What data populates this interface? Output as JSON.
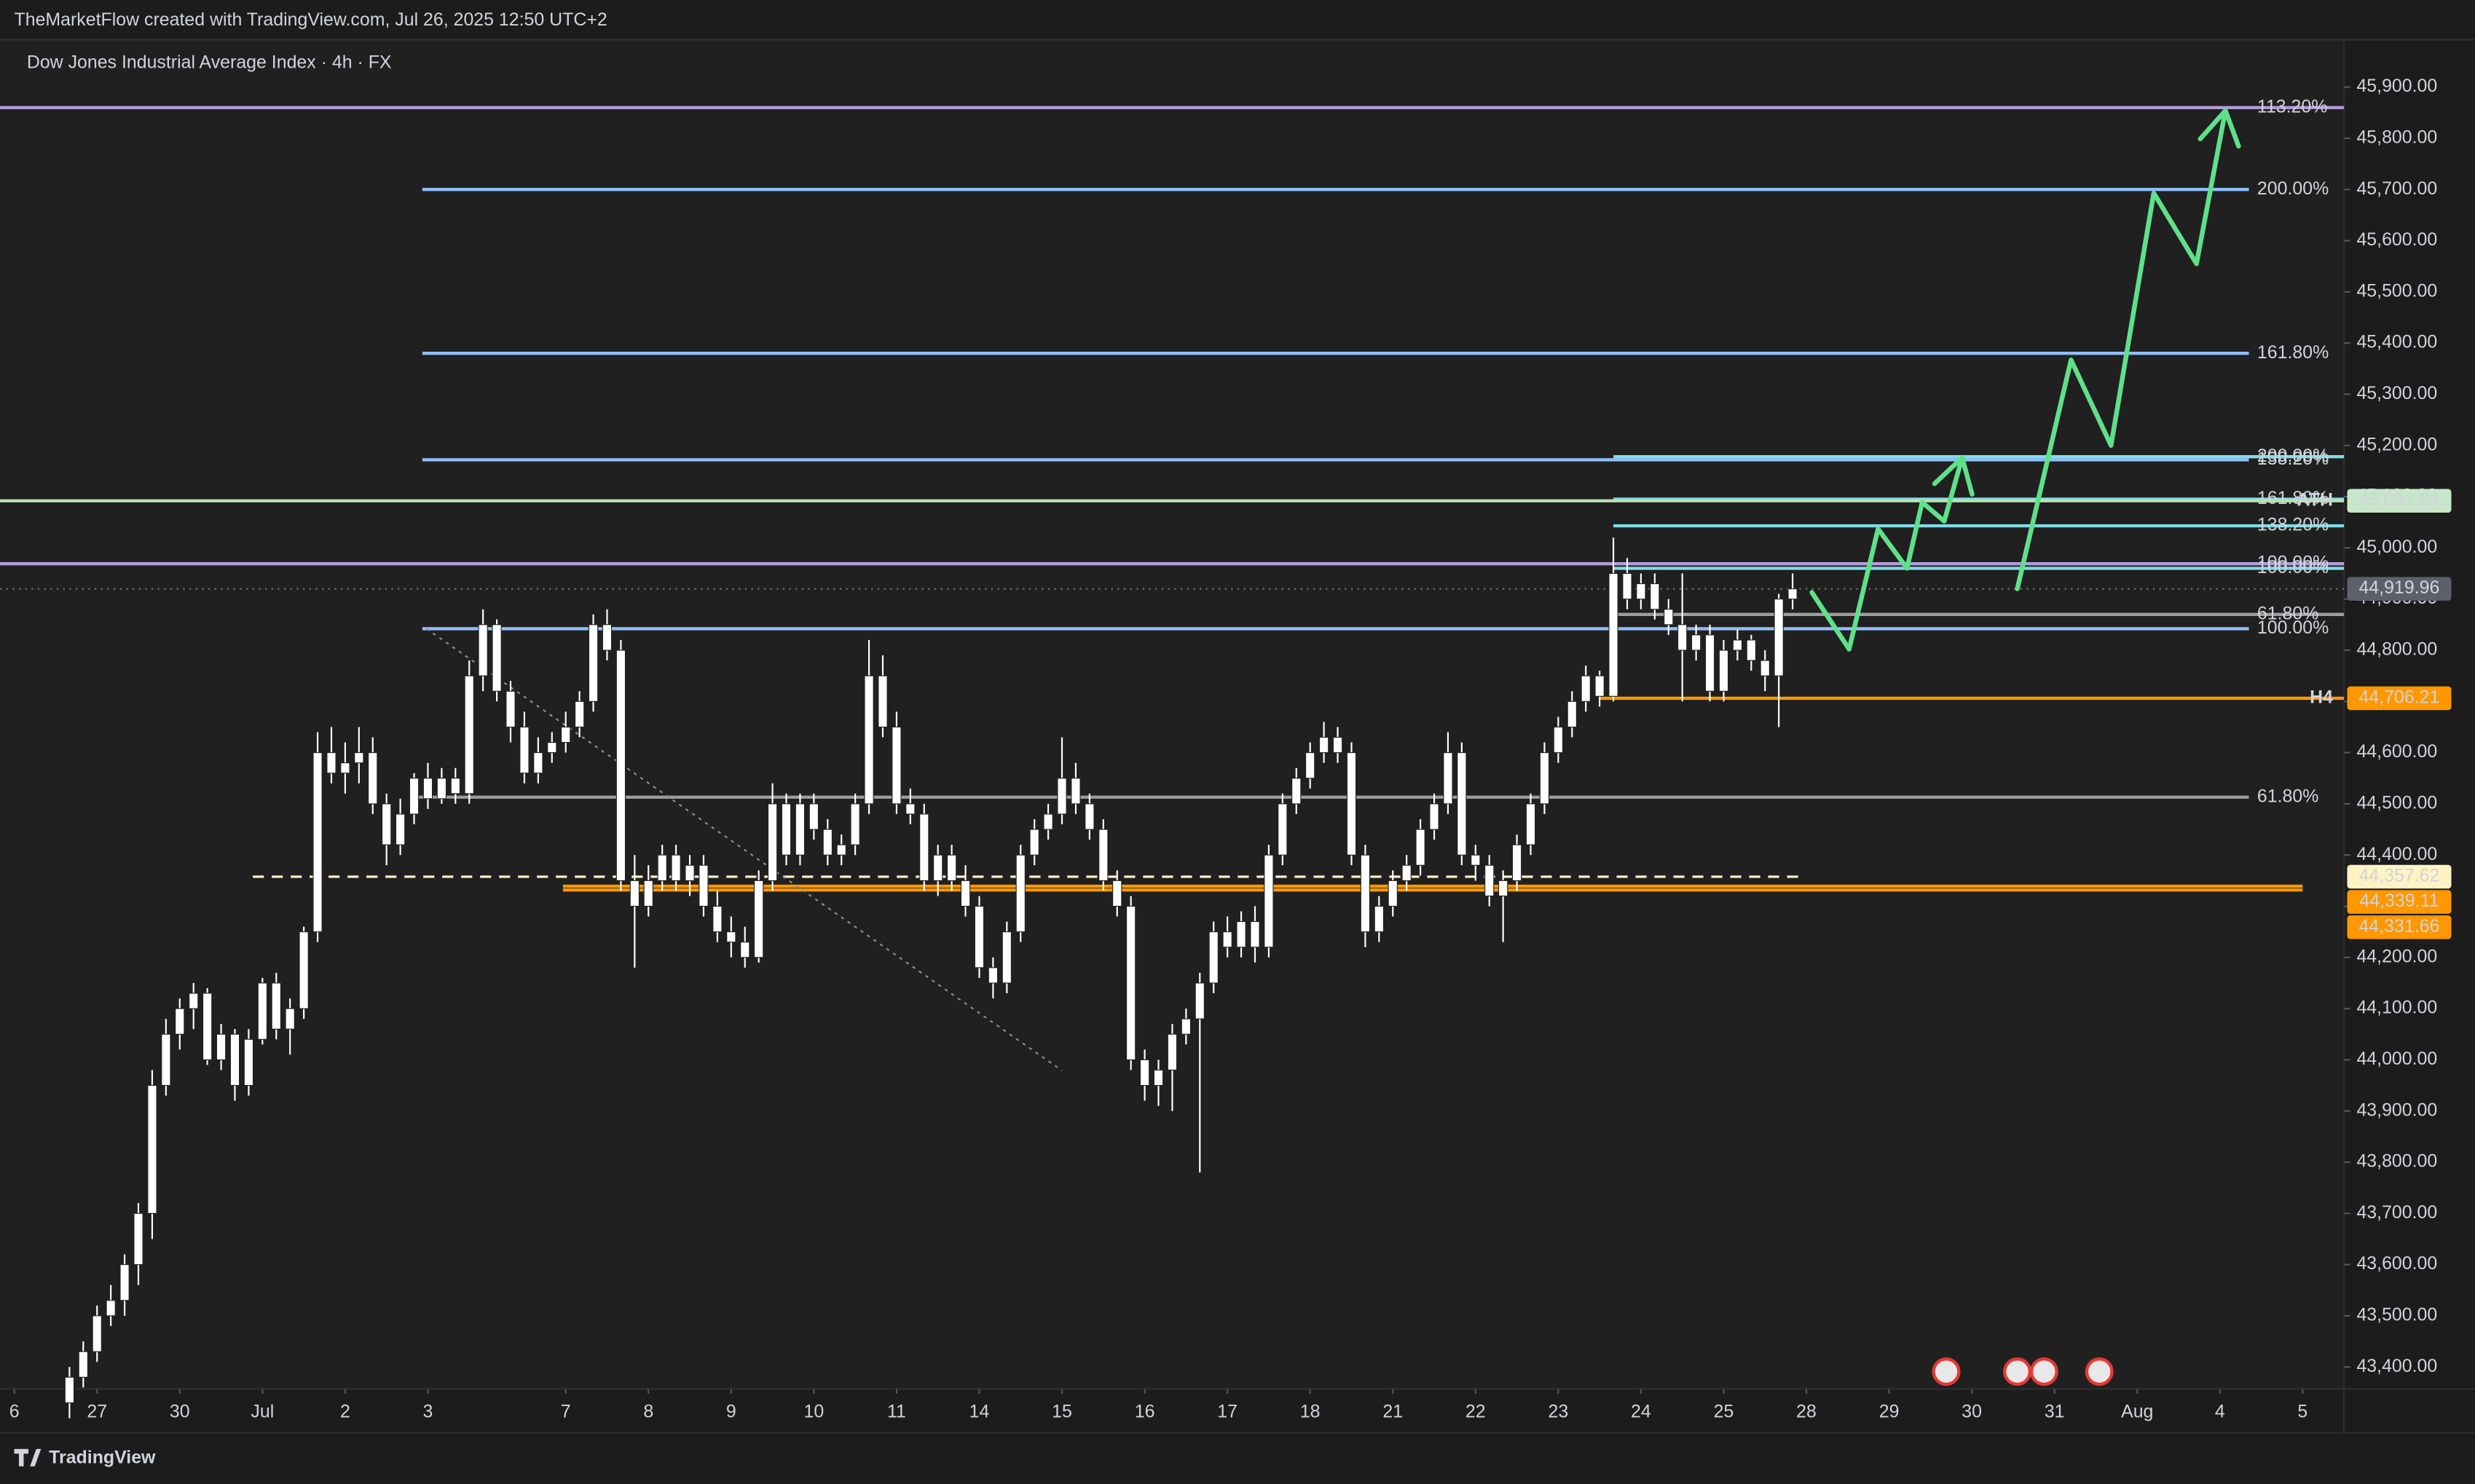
{
  "header": "TheMarketFlow created with TradingView.com, Jul 26, 2025 12:50 UTC+2",
  "footer": "TradingView",
  "chart_data": {
    "type": "candlestick",
    "title": "Dow Jones Industrial Average Index · 4h · FX",
    "candle_color": "#ffffff",
    "grid": false,
    "candles": [
      [
        43330,
        43400,
        43300,
        43380
      ],
      [
        43380,
        43450,
        43360,
        43430
      ],
      [
        43430,
        43520,
        43410,
        43500
      ],
      [
        43500,
        43560,
        43480,
        43530
      ],
      [
        43530,
        43620,
        43500,
        43600
      ],
      [
        43600,
        43720,
        43560,
        43700
      ],
      [
        43700,
        43980,
        43650,
        43950
      ],
      [
        43950,
        44080,
        43930,
        44050
      ],
      [
        44050,
        44120,
        44020,
        44100
      ],
      [
        44100,
        44150,
        44060,
        44130
      ],
      [
        44130,
        44140,
        43990,
        44000
      ],
      [
        44000,
        44070,
        43980,
        44050
      ],
      [
        44050,
        44060,
        43920,
        43950
      ],
      [
        43950,
        44060,
        43930,
        44040
      ],
      [
        44040,
        44160,
        44030,
        44150
      ],
      [
        44150,
        44170,
        44040,
        44060
      ],
      [
        44060,
        44120,
        44010,
        44100
      ],
      [
        44100,
        44260,
        44080,
        44250
      ],
      [
        44250,
        44640,
        44230,
        44600
      ],
      [
        44600,
        44650,
        44540,
        44560
      ],
      [
        44560,
        44620,
        44520,
        44580
      ],
      [
        44580,
        44650,
        44540,
        44600
      ],
      [
        44600,
        44630,
        44480,
        44500
      ],
      [
        44500,
        44520,
        44380,
        44420
      ],
      [
        44420,
        44510,
        44400,
        44480
      ],
      [
        44480,
        44560,
        44460,
        44550
      ],
      [
        44550,
        44580,
        44490,
        44510
      ],
      [
        44510,
        44570,
        44500,
        44550
      ],
      [
        44550,
        44570,
        44500,
        44520
      ],
      [
        44520,
        44780,
        44500,
        44750
      ],
      [
        44750,
        44880,
        44720,
        44850
      ],
      [
        44850,
        44860,
        44700,
        44720
      ],
      [
        44720,
        44740,
        44620,
        44650
      ],
      [
        44650,
        44680,
        44540,
        44560
      ],
      [
        44560,
        44630,
        44540,
        44600
      ],
      [
        44600,
        44640,
        44580,
        44620
      ],
      [
        44620,
        44680,
        44600,
        44650
      ],
      [
        44650,
        44720,
        44630,
        44700
      ],
      [
        44700,
        44870,
        44680,
        44850
      ],
      [
        44850,
        44880,
        44780,
        44800
      ],
      [
        44800,
        44820,
        44330,
        44350
      ],
      [
        44350,
        44400,
        44180,
        44300
      ],
      [
        44300,
        44380,
        44280,
        44350
      ],
      [
        44350,
        44420,
        44330,
        44400
      ],
      [
        44400,
        44420,
        44330,
        44350
      ],
      [
        44350,
        44400,
        44320,
        44380
      ],
      [
        44380,
        44400,
        44280,
        44300
      ],
      [
        44300,
        44330,
        44230,
        44250
      ],
      [
        44250,
        44280,
        44200,
        44230
      ],
      [
        44230,
        44260,
        44180,
        44200
      ],
      [
        44200,
        44370,
        44190,
        44350
      ],
      [
        44350,
        44540,
        44330,
        44500
      ],
      [
        44500,
        44520,
        44380,
        44400
      ],
      [
        44400,
        44520,
        44380,
        44500
      ],
      [
        44500,
        44520,
        44430,
        44450
      ],
      [
        44450,
        44470,
        44380,
        44400
      ],
      [
        44400,
        44440,
        44380,
        44420
      ],
      [
        44420,
        44520,
        44400,
        44500
      ],
      [
        44500,
        44820,
        44480,
        44750
      ],
      [
        44750,
        44790,
        44630,
        44650
      ],
      [
        44650,
        44680,
        44480,
        44500
      ],
      [
        44500,
        44530,
        44460,
        44480
      ],
      [
        44480,
        44500,
        44330,
        44350
      ],
      [
        44350,
        44420,
        44320,
        44400
      ],
      [
        44400,
        44420,
        44330,
        44350
      ],
      [
        44350,
        44380,
        44280,
        44300
      ],
      [
        44300,
        44320,
        44160,
        44180
      ],
      [
        44180,
        44200,
        44120,
        44150
      ],
      [
        44150,
        44270,
        44130,
        44250
      ],
      [
        44250,
        44420,
        44230,
        44400
      ],
      [
        44400,
        44470,
        44380,
        44450
      ],
      [
        44450,
        44500,
        44430,
        44480
      ],
      [
        44480,
        44630,
        44460,
        44550
      ],
      [
        44550,
        44580,
        44480,
        44500
      ],
      [
        44500,
        44520,
        44430,
        44450
      ],
      [
        44450,
        44470,
        44330,
        44350
      ],
      [
        44350,
        44370,
        44280,
        44300
      ],
      [
        44300,
        44320,
        43980,
        44000
      ],
      [
        44000,
        44020,
        43920,
        43950
      ],
      [
        43950,
        44000,
        43910,
        43980
      ],
      [
        43980,
        44070,
        43900,
        44050
      ],
      [
        44050,
        44100,
        44030,
        44080
      ],
      [
        44080,
        44170,
        43780,
        44150
      ],
      [
        44150,
        44270,
        44130,
        44250
      ],
      [
        44250,
        44280,
        44200,
        44220
      ],
      [
        44220,
        44290,
        44200,
        44270
      ],
      [
        44270,
        44300,
        44190,
        44220
      ],
      [
        44220,
        44420,
        44200,
        44400
      ],
      [
        44400,
        44520,
        44380,
        44500
      ],
      [
        44500,
        44570,
        44480,
        44550
      ],
      [
        44550,
        44620,
        44530,
        44600
      ],
      [
        44600,
        44660,
        44580,
        44630
      ],
      [
        44630,
        44650,
        44580,
        44600
      ],
      [
        44600,
        44620,
        44380,
        44400
      ],
      [
        44400,
        44420,
        44220,
        44250
      ],
      [
        44250,
        44320,
        44230,
        44300
      ],
      [
        44300,
        44370,
        44280,
        44350
      ],
      [
        44350,
        44400,
        44330,
        44380
      ],
      [
        44380,
        44470,
        44360,
        44450
      ],
      [
        44450,
        44520,
        44430,
        44500
      ],
      [
        44500,
        44640,
        44480,
        44600
      ],
      [
        44600,
        44620,
        44380,
        44400
      ],
      [
        44400,
        44420,
        44350,
        44380
      ],
      [
        44380,
        44400,
        44300,
        44320
      ],
      [
        44320,
        44370,
        44230,
        44350
      ],
      [
        44350,
        44440,
        44330,
        44420
      ],
      [
        44420,
        44520,
        44400,
        44500
      ],
      [
        44500,
        44620,
        44480,
        44600
      ],
      [
        44600,
        44670,
        44580,
        44650
      ],
      [
        44650,
        44720,
        44630,
        44700
      ],
      [
        44700,
        44770,
        44680,
        44750
      ],
      [
        44750,
        44760,
        44690,
        44710
      ],
      [
        44710,
        45020,
        44700,
        44950
      ],
      [
        44950,
        44980,
        44880,
        44900
      ],
      [
        44900,
        44950,
        44880,
        44930
      ],
      [
        44930,
        44950,
        44860,
        44880
      ],
      [
        44880,
        44900,
        44830,
        44850
      ],
      [
        44850,
        44950,
        44700,
        44800
      ],
      [
        44800,
        44850,
        44780,
        44830
      ],
      [
        44830,
        44850,
        44700,
        44720
      ],
      [
        44720,
        44820,
        44700,
        44800
      ],
      [
        44800,
        44840,
        44780,
        44820
      ],
      [
        44820,
        44830,
        44760,
        44780
      ],
      [
        44780,
        44800,
        44720,
        44750
      ],
      [
        44750,
        44910,
        44650,
        44900
      ],
      [
        44900,
        44950,
        44880,
        44919.96
      ]
    ],
    "last_price_label": "44,919.96",
    "xlim": [
      -5.04,
      165
    ],
    "xticks": [
      {
        "value": -4,
        "label": "6"
      },
      {
        "value": 2,
        "label": "27"
      },
      {
        "value": 8,
        "label": "30"
      },
      {
        "value": 14,
        "label": "Jul"
      },
      {
        "value": 20,
        "label": "2"
      },
      {
        "value": 26,
        "label": "3"
      },
      {
        "value": 36,
        "label": "7"
      },
      {
        "value": 42,
        "label": "8"
      },
      {
        "value": 48,
        "label": "9"
      },
      {
        "value": 54,
        "label": "10"
      },
      {
        "value": 60,
        "label": "11"
      },
      {
        "value": 66,
        "label": "14"
      },
      {
        "value": 72,
        "label": "15"
      },
      {
        "value": 78,
        "label": "16"
      },
      {
        "value": 84,
        "label": "17"
      },
      {
        "value": 90,
        "label": "18"
      },
      {
        "value": 96,
        "label": "21"
      },
      {
        "value": 102,
        "label": "22"
      },
      {
        "value": 108,
        "label": "23"
      },
      {
        "value": 114,
        "label": "24"
      },
      {
        "value": 120,
        "label": "25"
      },
      {
        "value": 126,
        "label": "28"
      },
      {
        "value": 132,
        "label": "29"
      },
      {
        "value": 138,
        "label": "30"
      },
      {
        "value": 144,
        "label": "31"
      },
      {
        "value": 150,
        "label": "Aug"
      },
      {
        "value": 156,
        "label": "4"
      },
      {
        "value": 162,
        "label": "5"
      }
    ],
    "ylim": [
      43357,
      45977
    ],
    "yticks": [
      {
        "value": 43400,
        "label": "43,400.00"
      },
      {
        "value": 43500,
        "label": "43,500.00"
      },
      {
        "value": 43600,
        "label": "43,600.00"
      },
      {
        "value": 43700,
        "label": "43,700.00"
      },
      {
        "value": 43800,
        "label": "43,800.00"
      },
      {
        "value": 43900,
        "label": "43,900.00"
      },
      {
        "value": 44000,
        "label": "44,000.00"
      },
      {
        "value": 44100,
        "label": "44,100.00"
      },
      {
        "value": 44200,
        "label": "44,200.00"
      },
      {
        "value": 44300,
        "label": "44,300.00"
      },
      {
        "value": 44400,
        "label": "44,400.00"
      },
      {
        "value": 44500,
        "label": "44,500.00"
      },
      {
        "value": 44600,
        "label": "44,600.00"
      },
      {
        "value": 44700,
        "label": "44,700.00"
      },
      {
        "value": 44800,
        "label": "44,800.00"
      },
      {
        "value": 44900,
        "label": "44,900.00"
      },
      {
        "value": 45000,
        "label": "45,000.00"
      },
      {
        "value": 45100,
        "label": "45,100.00"
      },
      {
        "value": 45200,
        "label": "45,200.00"
      },
      {
        "value": 45300,
        "label": "45,300.00"
      },
      {
        "value": 45400,
        "label": "45,400.00"
      },
      {
        "value": 45500,
        "label": "45,500.00"
      },
      {
        "value": 45600,
        "label": "45,600.00"
      },
      {
        "value": 45700,
        "label": "45,700.00"
      },
      {
        "value": 45800,
        "label": "45,800.00"
      },
      {
        "value": 45900,
        "label": "45,900.00"
      }
    ],
    "levels": [
      {
        "price": 45860,
        "label": "113.20%",
        "color": "#b39ddb"
      },
      {
        "price": 45700,
        "label": "200.00%",
        "color": "#90bff9",
        "from": 25.6,
        "to": 158.1
      },
      {
        "price": 45380,
        "label": "161.80%",
        "color": "#90bff9",
        "from": 25.6,
        "to": 158.1
      },
      {
        "price": 45172,
        "label": "138.20%",
        "color": "#90bff9",
        "from": 25.6,
        "to": 158.1
      },
      {
        "price": 45178,
        "label": "200.00%",
        "color": "#7fdce8",
        "from": 112
      },
      {
        "price": 45095,
        "label": "161.80%",
        "color": "#7fdce8",
        "from": 112
      },
      {
        "price": 45091.94,
        "label": "ATH",
        "color": "#b9e3b0",
        "tag": "45,091.94",
        "tag_color": "#c8e6c9"
      },
      {
        "price": 45043,
        "label": "138.20%",
        "color": "#7fdce8",
        "from": 112
      },
      {
        "price": 44969,
        "label": "100.00%",
        "color": "#b39ddb"
      },
      {
        "price": 44960,
        "label": "100.00%",
        "color": "#7fdce8",
        "from": 112
      },
      {
        "price": 44870,
        "label": "61.80%",
        "color": "#9e9e9e",
        "from": 112
      },
      {
        "price": 44842,
        "label": "100.00%",
        "color": "#90bff9",
        "from": 25.6,
        "to": 158.1
      },
      {
        "price": 44706.21,
        "label": "H4",
        "color": "#ff9800",
        "from": 111,
        "tag": "44,706.21",
        "tag_color": "#ff9800"
      },
      {
        "price": 44513,
        "label": "61.80%",
        "color": "#9e9e9e",
        "from": 25,
        "to": 158.1
      },
      {
        "price": 44357.62,
        "color": "#fff3c4",
        "from": 13.3,
        "to": 125.5,
        "dashed": true,
        "tag": "44,357.62",
        "tag_color": "#fff3c4"
      },
      {
        "price": 44339.11,
        "color": "#ff9800",
        "from": 35.8,
        "to": 162,
        "tag": "44,339.11",
        "tag_color": "#ff9800"
      },
      {
        "price": 44331.66,
        "color": "#ff9800",
        "from": 35.8,
        "to": 162,
        "tag": "44,331.66",
        "tag_color": "#ff9800"
      }
    ],
    "trend_line": {
      "x": [
        25.9,
        72
      ],
      "y": [
        44842,
        43979
      ],
      "color": "#8a8d96"
    },
    "projection_color": "#5fe08a",
    "projections": [
      {
        "x": [
          126.4,
          129.1,
          131.2,
          133.3,
          134.4,
          136,
          137.3
        ],
        "y": [
          44913,
          44802,
          45037,
          44960,
          45089,
          45052,
          45176
        ]
      },
      {
        "x": [
          141.3,
          145.2,
          148.1,
          151.2,
          154.3,
          156.4
        ],
        "y": [
          44920,
          45367,
          45200,
          45693,
          45555,
          45854
        ]
      }
    ]
  }
}
